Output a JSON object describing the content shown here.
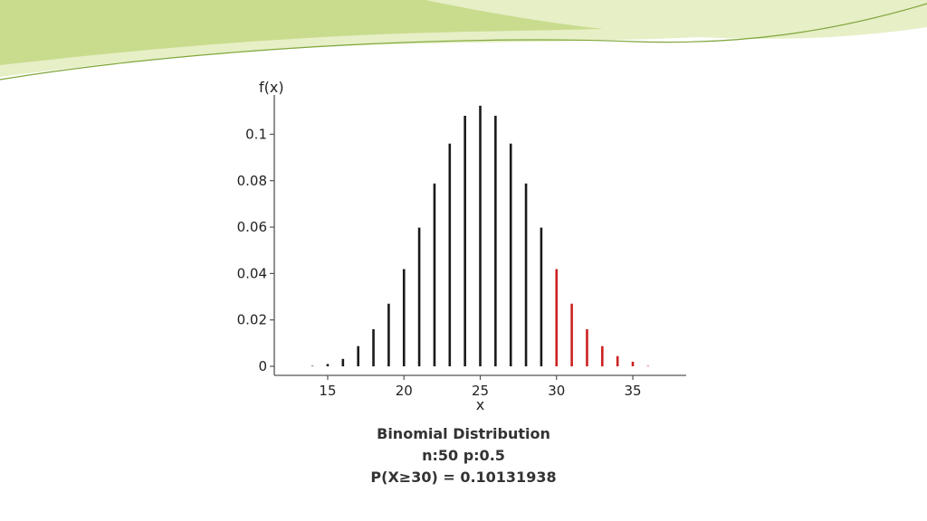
{
  "colors": {
    "banner_light": "#e6efc6",
    "banner_mid": "#c9dc8e",
    "banner_dark": "#a9c95c",
    "banner_line": "#7fa63a",
    "bar_default": "#1a1a1a",
    "bar_highlight": "#cc2222",
    "axis": "#555555"
  },
  "caption": {
    "line1": "Binomial Distribution",
    "line2": "n:50  p:0.5",
    "line3": "P(X≥30) = 0.10131938"
  },
  "chart_data": {
    "type": "bar",
    "title": "",
    "xlabel": "x",
    "ylabel": "f(x)",
    "xlim": [
      11.5,
      38.5
    ],
    "ylim": [
      0,
      0.115
    ],
    "x_ticks": [
      15,
      20,
      25,
      30,
      35
    ],
    "y_ticks": [
      0,
      0.02,
      0.04,
      0.06,
      0.08,
      0.1
    ],
    "y_tick_labels": [
      "0",
      "0.02",
      "0.04",
      "0.06",
      "0.08",
      "0.1"
    ],
    "highlight_from": 30,
    "x": [
      14,
      15,
      16,
      17,
      18,
      19,
      20,
      21,
      22,
      23,
      24,
      25,
      26,
      27,
      28,
      29,
      30,
      31,
      32,
      33,
      34,
      35,
      36
    ],
    "values": [
      0.0002,
      0.001,
      0.0032,
      0.0087,
      0.016,
      0.027,
      0.0419,
      0.0598,
      0.0788,
      0.096,
      0.108,
      0.1123,
      0.108,
      0.096,
      0.0788,
      0.0598,
      0.0419,
      0.027,
      0.016,
      0.0087,
      0.0044,
      0.002,
      0.0002
    ]
  }
}
